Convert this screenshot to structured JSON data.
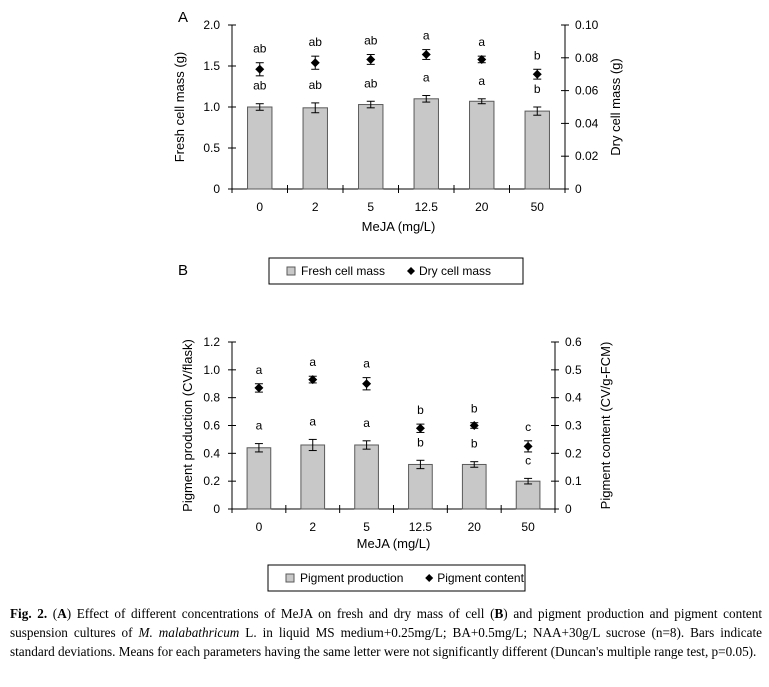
{
  "chart_data": [
    {
      "panel": "A",
      "type": "bar",
      "categories": [
        "0",
        "2",
        "5",
        "12.5",
        "20",
        "50"
      ],
      "xlabel": "MeJA (mg/L)",
      "ylabel": "Fresh cell mass (g)",
      "ylabel_right": "Dry cell mass (g)",
      "ylim": [
        0,
        2.0
      ],
      "yticks": [
        "0",
        "0.5",
        "1.0",
        "1.5",
        "2.0"
      ],
      "ylim_right": [
        0,
        0.1
      ],
      "yticks_right": [
        "0",
        "0.02",
        "0.04",
        "0.06",
        "0.08",
        "0.10"
      ],
      "legend_position": "bottom",
      "series": [
        {
          "name": "Fresh cell mass",
          "kind": "bar",
          "axis": "left",
          "values": [
            1.0,
            0.99,
            1.03,
            1.1,
            1.07,
            0.95
          ],
          "errors": [
            0.04,
            0.06,
            0.04,
            0.04,
            0.03,
            0.05
          ],
          "letters": [
            "ab",
            "ab",
            "ab",
            "a",
            "a",
            "b"
          ]
        },
        {
          "name": "Dry cell mass",
          "kind": "point",
          "axis": "right",
          "values": [
            0.073,
            0.077,
            0.079,
            0.082,
            0.079,
            0.07
          ],
          "errors": [
            0.004,
            0.004,
            0.003,
            0.003,
            0.002,
            0.003
          ],
          "letters": [
            "ab",
            "ab",
            "ab",
            "a",
            "a",
            "b"
          ]
        }
      ]
    },
    {
      "panel": "B",
      "type": "bar",
      "categories": [
        "0",
        "2",
        "5",
        "12.5",
        "20",
        "50"
      ],
      "xlabel": "MeJA (mg/L)",
      "ylabel": "Pigment production (CV/flask)",
      "ylabel_right": "Pigment content (CV/g-FCM)",
      "ylim": [
        0,
        1.2
      ],
      "yticks": [
        "0",
        "0.2",
        "0.4",
        "0.6",
        "0.8",
        "1.0",
        "1.2"
      ],
      "ylim_right": [
        0,
        0.6
      ],
      "yticks_right": [
        "0",
        "0.1",
        "0.2",
        "0.3",
        "0.4",
        "0.5",
        "0.6"
      ],
      "legend_position": "bottom",
      "series": [
        {
          "name": "Pigment production",
          "kind": "bar",
          "axis": "left",
          "values": [
            0.44,
            0.46,
            0.46,
            0.32,
            0.32,
            0.2
          ],
          "errors": [
            0.03,
            0.04,
            0.03,
            0.03,
            0.02,
            0.02
          ],
          "letters": [
            "a",
            "a",
            "a",
            "b",
            "b",
            "c"
          ]
        },
        {
          "name": "Pigment content",
          "kind": "point",
          "axis": "right",
          "values": [
            0.435,
            0.465,
            0.45,
            0.29,
            0.3,
            0.225
          ],
          "errors": [
            0.015,
            0.012,
            0.022,
            0.015,
            0.01,
            0.02
          ],
          "letters": [
            "a",
            "a",
            "a",
            "b",
            "b",
            "c"
          ]
        }
      ]
    }
  ],
  "caption": {
    "fig_label": "Fig. 2.",
    "segments": [
      {
        "t": "(",
        "s": ""
      },
      {
        "t": "A",
        "s": "b"
      },
      {
        "t": ") Effect of different concentrations of MeJA on fresh and dry mass of cell (",
        "s": ""
      },
      {
        "t": "B",
        "s": "b"
      },
      {
        "t": ") and pigment production and pigment content suspension cultures of ",
        "s": ""
      },
      {
        "t": "M. malabathricum",
        "s": "i"
      },
      {
        "t": " L. in liquid MS medium+0.25mg/L; BA+0.5mg/L; NAA+30g/L sucrose (n=8). Bars indicate standard deviations. Means for each parameters having the same letter were not significantly different (Duncan's multiple range test, p=0.05).",
        "s": ""
      }
    ]
  }
}
